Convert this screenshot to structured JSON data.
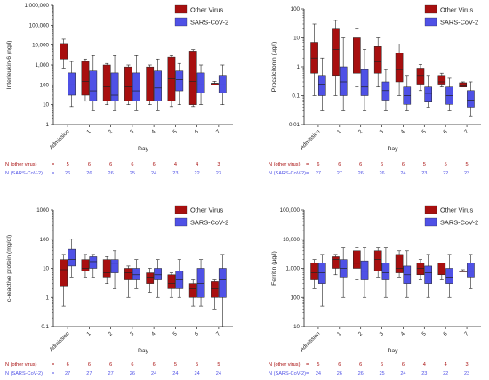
{
  "colors": {
    "other": "#a80f0f",
    "sars": "#4f51e6"
  },
  "chart_data": [
    {
      "type": "box",
      "ylabel": "Interleukin-6 (ng/l)",
      "xlabel": "Day",
      "scale": "log",
      "ylim": [
        1,
        1000000
      ],
      "yticks": [
        "1",
        "10",
        "100",
        "1,000",
        "10,000",
        "100,000",
        "1,000,000"
      ],
      "categories": [
        "Admission",
        "1",
        "2",
        "3",
        "4",
        "5",
        "6",
        "7"
      ],
      "legend": [
        "Other Virus",
        "SARS-CoV-2"
      ],
      "n_rows": [
        {
          "label": "N (other virus)",
          "values": [
            "5",
            "6",
            "6",
            "6",
            "6",
            "4",
            "4",
            "3"
          ]
        },
        {
          "label": "N (SARS-CoV-2)",
          "values": [
            "26",
            "26",
            "26",
            "25",
            "24",
            "23",
            "22",
            "23"
          ]
        }
      ],
      "series": [
        {
          "name": "Other Virus",
          "boxes": [
            [
              700,
              2000,
              4000,
              12000,
              20000
            ],
            [
              15,
              30,
              150,
              1500,
              2000
            ],
            [
              10,
              15,
              80,
              1000,
              1200
            ],
            [
              10,
              15,
              80,
              800,
              1000
            ],
            [
              10,
              15,
              100,
              800,
              1000
            ],
            [
              8,
              15,
              200,
              2500,
              3000
            ],
            [
              8,
              10,
              150,
              5000,
              6000
            ],
            [
              100,
              100,
              120,
              120,
              150
            ]
          ]
        },
        {
          "name": "SARS-CoV-2",
          "boxes": [
            [
              8,
              30,
              100,
              400,
              1500
            ],
            [
              5,
              15,
              50,
              500,
              3000
            ],
            [
              5,
              15,
              30,
              400,
              3000
            ],
            [
              5,
              15,
              50,
              400,
              3000
            ],
            [
              5,
              15,
              70,
              500,
              2000
            ],
            [
              10,
              50,
              180,
              500,
              1200
            ],
            [
              10,
              40,
              100,
              400,
              1000
            ],
            [
              10,
              40,
              100,
              300,
              1000
            ]
          ]
        }
      ]
    },
    {
      "type": "box",
      "ylabel": "Procalcitonin (µg/l)",
      "xlabel": "Day",
      "scale": "log",
      "ylim": [
        0.01,
        100
      ],
      "yticks": [
        "0.01",
        "0.1",
        "1",
        "10",
        "100"
      ],
      "categories": [
        "Admission",
        "1",
        "2",
        "3",
        "4",
        "5",
        "6",
        "7"
      ],
      "legend": [
        "Other Virus",
        "SARS-CoV-2"
      ],
      "n_rows": [
        {
          "label": "N (other virus)",
          "values": [
            "6",
            "6",
            "6",
            "6",
            "6",
            "5",
            "5",
            "5"
          ]
        },
        {
          "label": "N (SARS-CoV-2)",
          "values": [
            "27",
            "27",
            "26",
            "26",
            "24",
            "23",
            "22",
            "23"
          ]
        }
      ],
      "series": [
        {
          "name": "Other Virus",
          "boxes": [
            [
              0.1,
              0.6,
              2,
              7,
              30
            ],
            [
              0.1,
              0.5,
              4,
              20,
              40
            ],
            [
              0.2,
              0.6,
              3,
              10,
              20
            ],
            [
              0.2,
              0.6,
              1.5,
              5,
              10
            ],
            [
              0.1,
              0.3,
              0.8,
              3,
              6
            ],
            [
              0.15,
              0.25,
              0.5,
              0.9,
              1.2
            ],
            [
              0.2,
              0.25,
              0.3,
              0.5,
              0.6
            ],
            [
              0.2,
              0.2,
              0.22,
              0.28,
              0.3
            ]
          ]
        },
        {
          "name": "SARS-CoV-2",
          "boxes": [
            [
              0.03,
              0.1,
              0.25,
              0.5,
              2
            ],
            [
              0.03,
              0.1,
              0.3,
              1,
              10
            ],
            [
              0.03,
              0.1,
              0.2,
              0.8,
              4
            ],
            [
              0.03,
              0.07,
              0.15,
              0.3,
              0.8
            ],
            [
              0.03,
              0.05,
              0.1,
              0.2,
              0.5
            ],
            [
              0.04,
              0.06,
              0.12,
              0.2,
              0.5
            ],
            [
              0.03,
              0.05,
              0.1,
              0.2,
              0.4
            ],
            [
              0.02,
              0.04,
              0.07,
              0.15,
              0.3
            ]
          ]
        }
      ]
    },
    {
      "type": "box",
      "ylabel": "c-reactive protein (mg/dl)",
      "xlabel": "Day",
      "scale": "log",
      "ylim": [
        0.1,
        1000
      ],
      "yticks": [
        "0.1",
        "1",
        "10",
        "100",
        "1000"
      ],
      "categories": [
        "Admission",
        "1",
        "2",
        "3",
        "4",
        "5",
        "6",
        "7"
      ],
      "legend": [
        "Other Virus",
        "SARS-CoV-2"
      ],
      "n_rows": [
        {
          "label": "N (other virus)",
          "values": [
            "6",
            "6",
            "6",
            "6",
            "6",
            "5",
            "5",
            "5"
          ]
        },
        {
          "label": "N (SARS-CoV-2)",
          "values": [
            "27",
            "27",
            "27",
            "26",
            "24",
            "24",
            "24",
            "24"
          ]
        }
      ],
      "series": [
        {
          "name": "Other Virus",
          "boxes": [
            [
              0.5,
              2.5,
              9,
              20,
              30
            ],
            [
              5,
              8,
              10,
              20,
              30
            ],
            [
              3,
              5,
              7,
              20,
              25
            ],
            [
              1,
              4,
              7,
              10,
              12
            ],
            [
              1.5,
              3,
              5,
              7,
              10
            ],
            [
              1,
              2,
              3,
              6,
              7
            ],
            [
              0.5,
              1,
              2,
              3,
              4
            ],
            [
              0.4,
              1,
              2,
              3.5,
              4
            ]
          ]
        },
        {
          "name": "SARS-CoV-2",
          "boxes": [
            [
              5,
              12,
              20,
              45,
              100
            ],
            [
              5,
              10,
              17,
              25,
              30
            ],
            [
              2,
              7,
              15,
              20,
              40
            ],
            [
              2,
              4,
              6,
              10,
              20
            ],
            [
              1,
              4,
              6,
              10,
              20
            ],
            [
              1,
              2,
              4,
              8,
              20
            ],
            [
              0.5,
              1,
              3,
              10,
              20
            ],
            [
              0.1,
              1,
              4,
              10,
              30
            ]
          ]
        }
      ]
    },
    {
      "type": "box",
      "ylabel": "Ferritin (µg/l)",
      "xlabel": "Day",
      "scale": "log",
      "ylim": [
        10,
        100000
      ],
      "yticks": [
        "10",
        "100",
        "1,000",
        "10,000",
        "100,000"
      ],
      "categories": [
        "Admission",
        "1",
        "2",
        "3",
        "4",
        "5",
        "6",
        "7"
      ],
      "legend": [
        "Other Virus",
        "SARS-CoV-2"
      ],
      "n_rows": [
        {
          "label": "N (other virus)",
          "values": [
            "5",
            "6",
            "6",
            "6",
            "6",
            "4",
            "4",
            "3"
          ]
        },
        {
          "label": "N (SARS-CoV-2)",
          "values": [
            "24",
            "26",
            "26",
            "25",
            "24",
            "23",
            "22",
            "23"
          ]
        }
      ],
      "series": [
        {
          "name": "Other Virus",
          "boxes": [
            [
              200,
              400,
              700,
              1500,
              2000
            ],
            [
              600,
              1000,
              2000,
              2500,
              3000
            ],
            [
              400,
              1000,
              1500,
              4000,
              5000
            ],
            [
              500,
              800,
              2000,
              4000,
              5000
            ],
            [
              500,
              700,
              1000,
              3000,
              4000
            ],
            [
              400,
              600,
              1000,
              1500,
              2000
            ],
            [
              400,
              600,
              800,
              1500,
              1500
            ],
            [
              800,
              800,
              800,
              800,
              900
            ]
          ]
        },
        {
          "name": "SARS-CoV-2",
          "boxes": [
            [
              50,
              300,
              700,
              1500,
              3000
            ],
            [
              100,
              500,
              1000,
              2000,
              5000
            ],
            [
              100,
              400,
              800,
              1800,
              5000
            ],
            [
              100,
              400,
              700,
              1500,
              5000
            ],
            [
              100,
              300,
              600,
              1200,
              4000
            ],
            [
              100,
              300,
              700,
              1200,
              3000
            ],
            [
              100,
              300,
              500,
              1000,
              3000
            ],
            [
              200,
              500,
              800,
              1500,
              3000
            ]
          ]
        }
      ]
    }
  ]
}
